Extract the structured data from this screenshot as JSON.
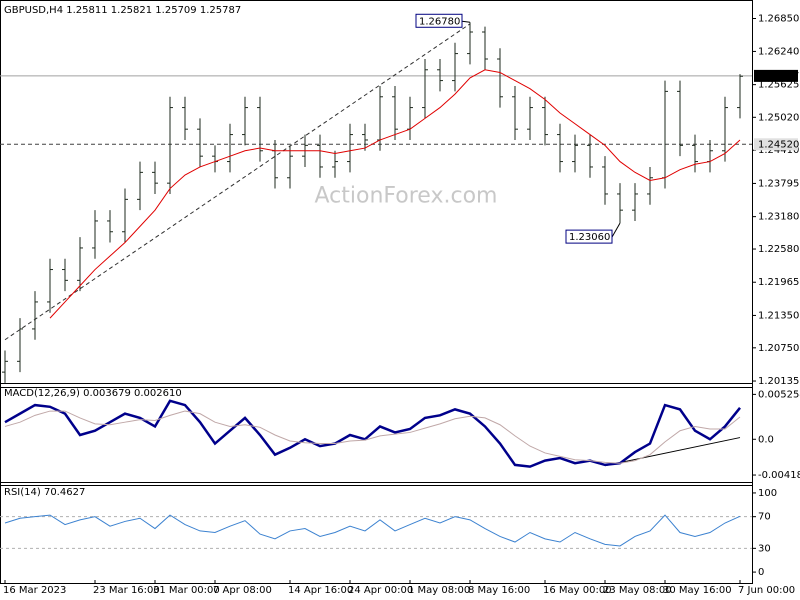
{
  "chart_data": [
    {
      "type": "ohlc",
      "title": "GBPUSD,H4  1.25811 1.25821 1.25709 1.25787",
      "watermark": "ActionForex.com",
      "color": "#1e2a1e",
      "categories": [
        "16 Mar 2023",
        null,
        null,
        null,
        null,
        null,
        "23 Mar 16:00",
        null,
        null,
        null,
        "31 Mar 00:00",
        null,
        null,
        null,
        "7 Apr 08:00",
        null,
        null,
        null,
        null,
        "14 Apr 16:00",
        null,
        null,
        null,
        "24 Apr 00:00",
        null,
        null,
        null,
        "1 May 08:00",
        null,
        null,
        null,
        "8 May 16:00",
        null,
        null,
        null,
        null,
        "16 May 00:00",
        null,
        null,
        null,
        "23 May 08:00",
        null,
        null,
        null,
        "30 May 16:00",
        null,
        null,
        null,
        null,
        "7 Jun 00:00"
      ],
      "open": [
        1.203,
        1.205,
        1.211,
        1.216,
        1.222,
        1.22,
        1.226,
        1.231,
        1.229,
        1.235,
        1.24,
        1.238,
        1.252,
        1.248,
        1.243,
        1.242,
        1.247,
        1.252,
        1.244,
        1.239,
        1.243,
        1.245,
        1.241,
        1.242,
        1.247,
        1.246,
        1.254,
        1.248,
        1.252,
        1.259,
        1.257,
        1.262,
        1.266,
        1.261,
        1.254,
        1.248,
        1.252,
        1.247,
        1.242,
        1.245,
        1.241,
        1.236,
        1.233,
        1.236,
        1.239,
        1.255,
        1.245,
        1.242,
        1.244,
        1.252
      ],
      "high": [
        1.207,
        1.213,
        1.218,
        1.224,
        1.224,
        1.228,
        1.233,
        1.233,
        1.237,
        1.242,
        1.242,
        1.254,
        1.254,
        1.25,
        1.245,
        1.249,
        1.254,
        1.254,
        1.246,
        1.245,
        1.247,
        1.247,
        1.244,
        1.249,
        1.249,
        1.256,
        1.256,
        1.254,
        1.261,
        1.261,
        1.264,
        1.2678,
        1.267,
        1.263,
        1.256,
        1.254,
        1.254,
        1.249,
        1.247,
        1.247,
        1.243,
        1.238,
        1.238,
        1.241,
        1.257,
        1.257,
        1.247,
        1.246,
        1.254,
        1.2582
      ],
      "low": [
        1.201,
        1.203,
        1.209,
        1.214,
        1.218,
        1.218,
        1.224,
        1.227,
        1.227,
        1.233,
        1.236,
        1.236,
        1.246,
        1.241,
        1.24,
        1.24,
        1.245,
        1.242,
        1.237,
        1.237,
        1.241,
        1.239,
        1.239,
        1.24,
        1.244,
        1.244,
        1.246,
        1.246,
        1.25,
        1.255,
        1.255,
        1.26,
        1.259,
        1.252,
        1.246,
        1.246,
        1.245,
        1.24,
        1.24,
        1.239,
        1.234,
        1.2306,
        1.231,
        1.234,
        1.237,
        1.243,
        1.24,
        1.24,
        1.242,
        1.25
      ],
      "close": [
        1.205,
        1.211,
        1.216,
        1.222,
        1.22,
        1.226,
        1.231,
        1.229,
        1.235,
        1.24,
        1.238,
        1.252,
        1.248,
        1.243,
        1.242,
        1.247,
        1.252,
        1.244,
        1.239,
        1.243,
        1.245,
        1.241,
        1.242,
        1.247,
        1.246,
        1.254,
        1.248,
        1.252,
        1.259,
        1.257,
        1.262,
        1.266,
        1.261,
        1.254,
        1.248,
        1.252,
        1.247,
        1.242,
        1.245,
        1.241,
        1.236,
        1.233,
        1.236,
        1.239,
        1.255,
        1.245,
        1.242,
        1.244,
        1.252,
        1.2578
      ],
      "overlays": [
        {
          "color": "#e00000",
          "values": [
            null,
            null,
            null,
            1.213,
            1.216,
            1.219,
            1.222,
            1.2245,
            1.227,
            1.23,
            1.233,
            1.237,
            1.2395,
            1.241,
            1.242,
            1.243,
            1.244,
            1.2445,
            1.244,
            1.244,
            1.244,
            1.244,
            1.2435,
            1.244,
            1.2445,
            1.246,
            1.247,
            1.248,
            1.25,
            1.252,
            1.2545,
            1.2575,
            1.259,
            1.2585,
            1.257,
            1.2555,
            1.2535,
            1.251,
            1.249,
            1.247,
            1.245,
            1.242,
            1.24,
            1.2385,
            1.239,
            1.2405,
            1.2415,
            1.242,
            1.2435,
            1.246
          ]
        }
      ],
      "hlines": [
        {
          "value": 1.25787,
          "label": "1.25787",
          "style": "solid",
          "color": "#a0a0a0",
          "tag": "#000000",
          "tag_text": "#ffffff"
        },
        {
          "value": 1.2452,
          "label": "1.24520",
          "style": "dashed",
          "color": "#404040",
          "tag": "#e0e0e0",
          "tag_text": "#000000"
        }
      ],
      "trendlines": [
        {
          "x": [
            0,
            31
          ],
          "y": [
            1.209,
            1.2675
          ],
          "style": "dashed",
          "color": "#303030"
        }
      ],
      "annotations": [
        {
          "text": "1.26780",
          "index": 31,
          "value": 1.2678,
          "anchor": "top"
        },
        {
          "text": "1.23060",
          "index": 41,
          "value": 1.2306,
          "anchor": "bottom"
        }
      ],
      "ylim": [
        1.2008,
        1.271
      ],
      "yticks": [
        {
          "value": 1.2685,
          "label": "1.26850"
        },
        {
          "value": 1.2624,
          "label": "1.26240"
        },
        1.25625,
        {
          "value": 1.2502,
          "label": "1.25020"
        },
        {
          "value": 1.2441,
          "label": "1.24410"
        },
        1.23795,
        {
          "value": 1.2318,
          "label": "1.23180"
        },
        {
          "value": 1.2258,
          "label": "1.22580"
        },
        1.21965,
        {
          "value": 1.2135,
          "label": "1.21350"
        },
        {
          "value": 1.2075,
          "label": "1.20750"
        },
        1.20135
      ]
    },
    {
      "type": "line",
      "title": "MACD(12,26,9) 0.003679 0.002610",
      "series": [
        {
          "color": "#00008b",
          "width": 2.5,
          "values": [
            0.002,
            0.003,
            0.004,
            0.0038,
            0.003,
            0.0005,
            0.001,
            0.002,
            0.003,
            0.0025,
            0.0015,
            0.0045,
            0.004,
            0.002,
            -0.0005,
            0.001,
            0.0025,
            0.0005,
            -0.0018,
            -0.001,
            0.0,
            -0.0008,
            -0.0005,
            0.0005,
            0.0,
            0.0015,
            0.0008,
            0.0012,
            0.0025,
            0.0028,
            0.0035,
            0.003,
            0.0015,
            -0.0005,
            -0.003,
            -0.0032,
            -0.0025,
            -0.0022,
            -0.0028,
            -0.0025,
            -0.003,
            -0.0028,
            -0.0015,
            -0.0005,
            0.004,
            0.0035,
            0.001,
            0.0,
            0.0015,
            0.003679
          ]
        },
        {
          "color": "#c0a8a8",
          "width": 1,
          "values": [
            0.0015,
            0.002,
            0.0028,
            0.0033,
            0.0033,
            0.0025,
            0.0018,
            0.0017,
            0.002,
            0.0023,
            0.0022,
            0.0028,
            0.0033,
            0.003,
            0.002,
            0.0015,
            0.0017,
            0.0014,
            0.0005,
            -0.0002,
            -0.0004,
            -0.0005,
            -0.0005,
            -0.0002,
            -0.0001,
            0.0004,
            0.0006,
            0.0008,
            0.0013,
            0.0018,
            0.0024,
            0.0027,
            0.0025,
            0.0017,
            0.0004,
            -0.0008,
            -0.0016,
            -0.002,
            -0.0024,
            -0.0025,
            -0.0027,
            -0.0028,
            -0.0025,
            -0.0018,
            -0.0003,
            0.001,
            0.0015,
            0.0012,
            0.0012,
            0.00261
          ]
        }
      ],
      "trendlines": [
        {
          "x": [
            40,
            49
          ],
          "y": [
            -0.0031,
            0.0002
          ],
          "style": "solid",
          "color": "#000000"
        }
      ],
      "ylim": [
        -0.005,
        0.006
      ],
      "yticks": [
        0.005254,
        {
          "value": 0,
          "label": "0.0"
        },
        -0.004185
      ]
    },
    {
      "type": "line",
      "title": "RSI(14) 70.4627",
      "series": [
        {
          "color": "#3c82d0",
          "width": 1,
          "values": [
            62,
            68,
            70,
            72,
            60,
            66,
            70,
            58,
            64,
            68,
            55,
            72,
            60,
            52,
            50,
            58,
            65,
            48,
            42,
            52,
            55,
            45,
            50,
            58,
            52,
            66,
            52,
            60,
            68,
            62,
            70,
            66,
            55,
            45,
            38,
            50,
            42,
            38,
            50,
            42,
            35,
            33,
            45,
            52,
            72,
            50,
            45,
            50,
            62,
            70.4627
          ]
        }
      ],
      "levels": [
        70,
        30
      ],
      "ylim": [
        -10,
        107.5
      ],
      "yticks": [
        100,
        70,
        30,
        0
      ]
    }
  ]
}
